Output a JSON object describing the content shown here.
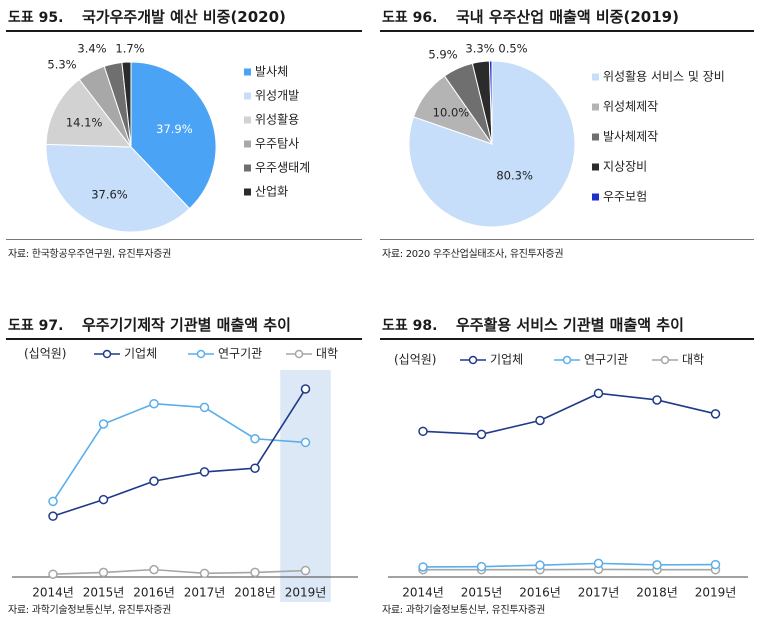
{
  "panels": [
    {
      "number": "도표 95.",
      "title": "국가우주개발 예산 비중(2020)",
      "source": "자료: 한국항공우주연구원, 유진투자증권"
    },
    {
      "number": "도표 96.",
      "title": "국내 우주산업 매출액 비중(2019)",
      "source": "자료: 2020 우주산업실태조사, 유진투자증권"
    },
    {
      "number": "도표 97.",
      "title": "우주기기제작 기관별 매출액 추이",
      "source": "자료: 과학기술정보통신부, 유진투자증권"
    },
    {
      "number": "도표 98.",
      "title": "우주활용 서비스 기관별 매출액 추이",
      "source": "자료: 과학기술정보통신부, 유진투자증권"
    }
  ],
  "chart_data": [
    {
      "type": "pie",
      "title": "국가우주개발 예산 비중(2020)",
      "labels": [
        "발사체",
        "위성개발",
        "위성활용",
        "우주탐사",
        "우주생태계",
        "산업화"
      ],
      "values": [
        37.9,
        37.6,
        14.1,
        5.3,
        3.4,
        1.7
      ],
      "value_labels": [
        "37.9%",
        "37.6%",
        "14.1%",
        "5.3%",
        "3.4%",
        "1.7%"
      ],
      "colors": [
        "#4aa3f5",
        "#c6defa",
        "#d2d2d2",
        "#a8a8a8",
        "#6f6f6f",
        "#2b2b2b"
      ],
      "legend": "right"
    },
    {
      "type": "pie",
      "title": "국내 우주산업 매출액 비중(2019)",
      "labels": [
        "위성활용 서비스 및 장비",
        "위성체제작",
        "발사체제작",
        "지상장비",
        "우주보험"
      ],
      "values": [
        80.3,
        10.0,
        5.9,
        3.3,
        0.5
      ],
      "value_labels": [
        "80.3%",
        "10.0%",
        "5.9%",
        "3.3%",
        "0.5%"
      ],
      "colors": [
        "#c6defa",
        "#b4b4b4",
        "#6f6f6f",
        "#2b2b2b",
        "#1c2fcf"
      ],
      "legend": "right"
    },
    {
      "type": "line",
      "title": "우주기기제작 기관별 매출액 추이",
      "unit": "(십억원)",
      "categories": [
        "2014년",
        "2015년",
        "2016년",
        "2017년",
        "2018년",
        "2019년"
      ],
      "series": [
        {
          "name": "기업체",
          "values": [
            330,
            420,
            520,
            570,
            590,
            1020
          ],
          "color": "#1f3a8a"
        },
        {
          "name": "연구기관",
          "values": [
            410,
            830,
            940,
            920,
            750,
            730
          ],
          "color": "#5aaeea"
        },
        {
          "name": "대학",
          "values": [
            15,
            25,
            40,
            20,
            25,
            35
          ],
          "color": "#a6a6a6"
        }
      ],
      "ylim": [
        0,
        1150
      ],
      "highlight_category": "2019년",
      "highlight_color": "#dce8f6",
      "grid": false,
      "legend": "top"
    },
    {
      "type": "line",
      "title": "우주활용 서비스 기관별 매출액 추이",
      "unit": "(십억원)",
      "categories": [
        "2014년",
        "2015년",
        "2016년",
        "2017년",
        "2018년",
        "2019년"
      ],
      "series": [
        {
          "name": "기업체",
          "values": [
            2300,
            2250,
            2480,
            2930,
            2820,
            2590
          ],
          "color": "#1f3a8a"
        },
        {
          "name": "연구기관",
          "values": [
            50,
            55,
            80,
            110,
            85,
            90
          ],
          "color": "#5aaeea"
        },
        {
          "name": "대학",
          "values": [
            5,
            5,
            5,
            10,
            5,
            5
          ],
          "color": "#a6a6a6"
        }
      ],
      "ylim": [
        0,
        3400
      ],
      "grid": false,
      "legend": "top"
    }
  ]
}
